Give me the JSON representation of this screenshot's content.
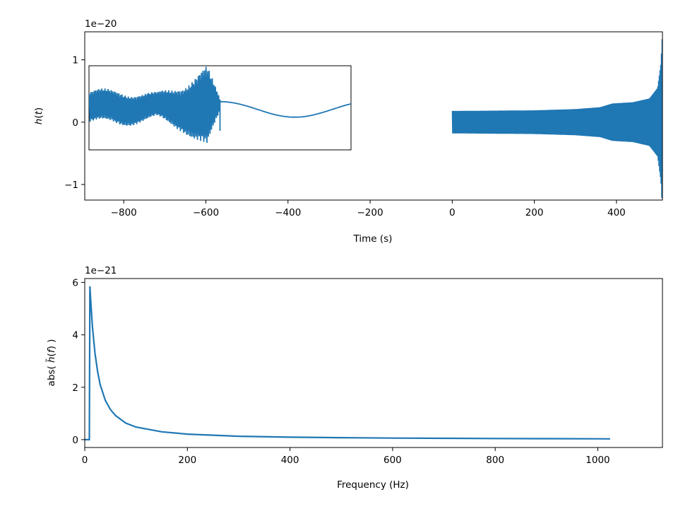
{
  "chart_data": [
    {
      "type": "line",
      "id": "time-domain",
      "xlabel": "Time (s)",
      "ylabel_text": "h",
      "ylabel_arg": "t",
      "y_offset_label": "1e−20",
      "xlim": [
        -895,
        512
      ],
      "ylim": [
        -1.25,
        1.45
      ],
      "xticks": [
        {
          "value": -800,
          "label": "−800"
        },
        {
          "value": -600,
          "label": "−600"
        },
        {
          "value": -400,
          "label": "−400"
        },
        {
          "value": -200,
          "label": "−200"
        },
        {
          "value": 0,
          "label": "0"
        },
        {
          "value": 200,
          "label": "200"
        },
        {
          "value": 400,
          "label": "400"
        }
      ],
      "yticks": [
        {
          "value": -1,
          "label": "−1"
        },
        {
          "value": 0,
          "label": "0"
        },
        {
          "value": 1,
          "label": "1"
        }
      ],
      "series": [
        {
          "color": "#1f77b4",
          "signal_start": 0,
          "signal_end": 511,
          "amplitude_envelope": [
            {
              "t": 0,
              "amp": 0.18
            },
            {
              "t": 200,
              "amp": 0.19
            },
            {
              "t": 300,
              "amp": 0.21
            },
            {
              "t": 360,
              "amp": 0.24
            },
            {
              "t": 390,
              "amp": 0.3
            },
            {
              "t": 440,
              "amp": 0.32
            },
            {
              "t": 480,
              "amp": 0.38
            },
            {
              "t": 500,
              "amp": 0.55
            },
            {
              "t": 508,
              "amp": 0.95
            },
            {
              "t": 511,
              "amp": 1.35
            }
          ]
        }
      ],
      "inset": {
        "description_points": [
          {
            "x": 0.0,
            "y": 0.38
          },
          {
            "x": 0.12,
            "y": 0.4
          },
          {
            "x": 0.26,
            "y": 0.3
          },
          {
            "x": 0.36,
            "y": 0.55
          },
          {
            "x": 0.45,
            "y": 1.0
          },
          {
            "x": 0.5,
            "y": 0.15
          },
          {
            "x": 0.68,
            "y": -0.25
          },
          {
            "x": 0.88,
            "y": 0.05
          },
          {
            "x": 1.0,
            "y": -0.1
          }
        ]
      }
    },
    {
      "type": "line",
      "id": "frequency-domain",
      "xlabel": "Frequency (Hz)",
      "ylabel_prefix": "abs( ",
      "ylabel_symbol": "h̃",
      "ylabel_arg": "f",
      "ylabel_suffix": " )",
      "y_offset_label": "1e−21",
      "xlim": [
        0,
        1126
      ],
      "ylim": [
        -0.3,
        6.15
      ],
      "xticks": [
        {
          "value": 0,
          "label": "0"
        },
        {
          "value": 200,
          "label": "200"
        },
        {
          "value": 400,
          "label": "400"
        },
        {
          "value": 600,
          "label": "600"
        },
        {
          "value": 800,
          "label": "800"
        },
        {
          "value": 1000,
          "label": "1000"
        }
      ],
      "yticks": [
        {
          "value": 0,
          "label": "0"
        },
        {
          "value": 2,
          "label": "2"
        },
        {
          "value": 4,
          "label": "4"
        },
        {
          "value": 6,
          "label": "6"
        }
      ],
      "series": [
        {
          "color": "#1f77b4",
          "points": [
            [
              0,
              0
            ],
            [
              9,
              0
            ],
            [
              10,
              5.85
            ],
            [
              12,
              5.2
            ],
            [
              15,
              4.3
            ],
            [
              20,
              3.3
            ],
            [
              25,
              2.6
            ],
            [
              30,
              2.1
            ],
            [
              40,
              1.5
            ],
            [
              50,
              1.15
            ],
            [
              60,
              0.92
            ],
            [
              80,
              0.63
            ],
            [
              100,
              0.48
            ],
            [
              150,
              0.3
            ],
            [
              200,
              0.21
            ],
            [
              300,
              0.13
            ],
            [
              400,
              0.095
            ],
            [
              500,
              0.075
            ],
            [
              600,
              0.06
            ],
            [
              700,
              0.05
            ],
            [
              800,
              0.042
            ],
            [
              900,
              0.036
            ],
            [
              1000,
              0.032
            ],
            [
              1024,
              0.03
            ]
          ]
        }
      ]
    }
  ]
}
